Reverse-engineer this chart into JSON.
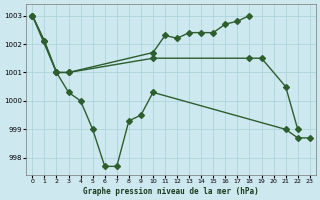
{
  "title": "Graphe pression niveau de la mer (hPa)",
  "bg_color": "#cde8ef",
  "grid_color": "#afd4dc",
  "line_color": "#2d5e2d",
  "ylim": [
    997.4,
    1003.4
  ],
  "yticks": [
    998,
    999,
    1000,
    1001,
    1002,
    1003
  ],
  "xticks": [
    0,
    1,
    2,
    3,
    4,
    5,
    6,
    7,
    8,
    9,
    10,
    11,
    12,
    13,
    14,
    15,
    16,
    17,
    18,
    19,
    20,
    21,
    22,
    23
  ],
  "line1_x": [
    0,
    1,
    2,
    3,
    10,
    11,
    12,
    13,
    14,
    15,
    16,
    17,
    18
  ],
  "line1_y": [
    1003.0,
    1002.1,
    1001.0,
    1001.0,
    1001.7,
    1002.3,
    1002.2,
    1002.4,
    1002.4,
    1002.4,
    1002.7,
    1002.8,
    1003.0
  ],
  "line2_x": [
    0,
    1,
    2,
    3,
    10,
    18,
    19,
    21,
    22
  ],
  "line2_y": [
    1003.0,
    1002.1,
    1001.0,
    1001.0,
    1001.5,
    1001.5,
    1001.5,
    1000.5,
    999.0
  ],
  "line3_x": [
    0,
    2,
    3,
    4,
    5,
    6,
    7,
    8,
    9,
    10,
    21,
    22,
    23
  ],
  "line3_y": [
    1003.0,
    1001.0,
    1000.3,
    1000.0,
    999.0,
    997.7,
    997.7,
    999.3,
    999.5,
    1000.3,
    999.0,
    998.7,
    998.7
  ]
}
